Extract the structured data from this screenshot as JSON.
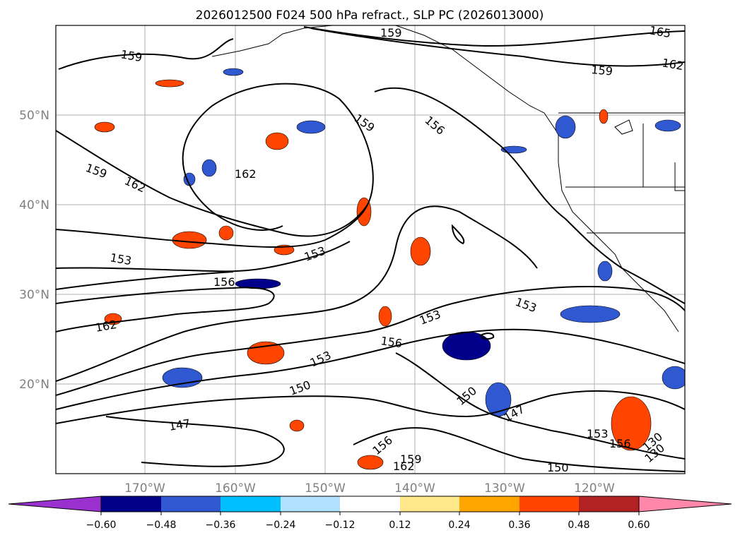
{
  "title": "2026012500 F024 500 hPa refract., SLP PC (2026013000)",
  "lat_labels": [
    "50°N",
    "40°N",
    "30°N",
    "20°N"
  ],
  "lon_labels": [
    "170°W",
    "160°W",
    "150°W",
    "140°W",
    "130°W",
    "120°W"
  ],
  "colorbar": {
    "ticks": [
      "−0.60",
      "−0.48",
      "−0.36",
      "−0.24",
      "−0.12",
      "0.12",
      "0.24",
      "0.36",
      "0.48",
      "0.60"
    ],
    "colors": [
      "#9b30d0",
      "#00008b",
      "#3058d0",
      "#00bfff",
      "#b0e2ff",
      "#ffffff",
      "#ffe88a",
      "#ffa500",
      "#ff4500",
      "#b22222",
      "#ff88aa"
    ]
  },
  "contour_labels": [
    "159",
    "159",
    "159",
    "156",
    "162",
    "162",
    "165",
    "159",
    "159",
    "162",
    "153",
    "153",
    "156",
    "153",
    "153",
    "156",
    "162",
    "153",
    "150",
    "147",
    "150",
    "147",
    "153",
    "156",
    "130",
    "130",
    "156",
    "150",
    "162",
    "159"
  ]
}
